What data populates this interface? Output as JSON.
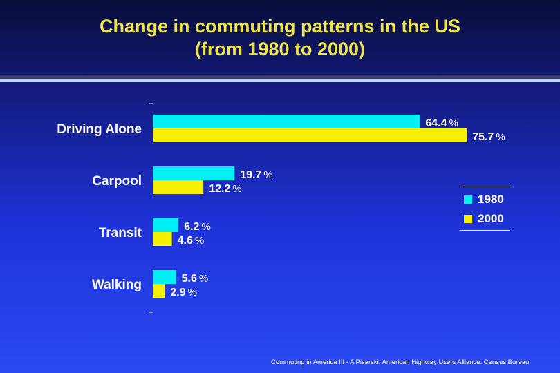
{
  "title": {
    "line1": "Change in commuting patterns in the US",
    "line2": "(from 1980 to 2000)"
  },
  "footer": "Commuting in America III - A Pisarski, American Highway Users Alliance: Census Bureau",
  "colors": {
    "series_1980": "#00f0f4",
    "series_2000": "#f6f000",
    "title": "#f0e64a",
    "text": "#ffffff"
  },
  "chart_data": {
    "type": "bar",
    "orientation": "horizontal",
    "categories": [
      "Driving Alone",
      "Carpool",
      "Transit",
      "Walking"
    ],
    "series": [
      {
        "name": "1980",
        "values": [
          64.4,
          19.7,
          6.2,
          5.6
        ],
        "labels": [
          "64.4",
          "19.7",
          "6.2",
          "5.6"
        ]
      },
      {
        "name": "2000",
        "values": [
          75.7,
          12.2,
          4.6,
          2.9
        ],
        "labels": [
          "75.7",
          "12.2",
          "4.6",
          "2.9"
        ]
      }
    ],
    "unit": "%",
    "xlim": [
      0,
      80
    ],
    "legend": "right",
    "grid": false
  }
}
